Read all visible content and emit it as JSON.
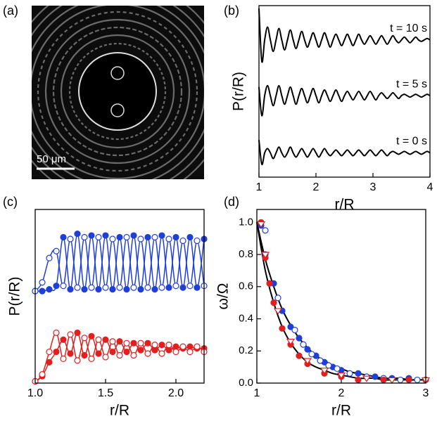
{
  "image_panel": {
    "label": "(a)",
    "scale_bar": "50 μm"
  },
  "chart_data": [
    {
      "type": "line",
      "label": "(b)",
      "xlabel": "r/R",
      "ylabel": "P(r/R)",
      "xlim": [
        1,
        4
      ],
      "xticks": [
        1,
        2,
        3,
        4
      ],
      "ylim": [
        0,
        12
      ],
      "x": [
        1.0,
        1.05,
        1.1,
        1.15,
        1.2,
        1.25,
        1.3,
        1.35,
        1.4,
        1.45,
        1.5,
        1.55,
        1.6,
        1.65,
        1.7,
        1.75,
        1.8,
        1.85,
        1.9,
        1.95,
        2.0,
        2.05,
        2.1,
        2.15,
        2.2,
        2.25,
        2.3,
        2.35,
        2.4,
        2.45,
        2.5,
        2.55,
        2.6,
        2.65,
        2.7,
        2.75,
        2.8,
        2.85,
        2.9,
        2.95,
        3.0,
        3.05,
        3.1,
        3.15,
        3.2,
        3.25,
        3.3,
        3.35,
        3.4,
        3.45,
        3.5,
        3.55,
        3.6,
        3.65,
        3.7,
        3.75,
        3.8,
        3.85,
        3.9,
        3.95,
        4.0
      ],
      "series": [
        {
          "name": "t = 10 s",
          "color": "#000000",
          "values": [
            11.8,
            8.1,
            9.6,
            10.5,
            9.6,
            8.8,
            9.6,
            10.4,
            9.6,
            8.9,
            9.6,
            10.3,
            9.6,
            9.0,
            9.6,
            10.2,
            9.6,
            9.1,
            9.6,
            10.1,
            9.6,
            9.1,
            9.6,
            10.1,
            9.6,
            9.1,
            9.6,
            10.0,
            9.6,
            9.2,
            9.6,
            10.0,
            9.6,
            9.2,
            9.6,
            10.0,
            9.6,
            9.3,
            9.6,
            9.9,
            9.6,
            9.3,
            9.6,
            9.9,
            9.6,
            9.3,
            9.6,
            9.9,
            9.6,
            9.4,
            9.6,
            9.8,
            9.6,
            9.4,
            9.6,
            9.8,
            9.6,
            9.5,
            9.6,
            9.7,
            9.6
          ]
        },
        {
          "name": "t = 5 s",
          "color": "#000000",
          "values": [
            6.3,
            4.3,
            5.7,
            6.4,
            5.7,
            5.0,
            5.7,
            6.4,
            5.7,
            5.1,
            5.7,
            6.3,
            5.7,
            5.1,
            5.7,
            6.2,
            5.7,
            5.2,
            5.7,
            6.2,
            5.7,
            5.2,
            5.7,
            6.1,
            5.7,
            5.3,
            5.7,
            6.1,
            5.7,
            5.3,
            5.7,
            6.0,
            5.7,
            5.4,
            5.7,
            6.0,
            5.7,
            5.4,
            5.7,
            6.0,
            5.7,
            5.4,
            5.7,
            5.9,
            5.7,
            5.5,
            5.7,
            5.9,
            5.7,
            5.5,
            5.7,
            5.8,
            5.7,
            5.6,
            5.7,
            5.8,
            5.7,
            5.6,
            5.7,
            5.8,
            5.7
          ]
        },
        {
          "name": "t = 0 s",
          "color": "#000000",
          "values": [
            2.6,
            0.9,
            1.7,
            2.0,
            1.7,
            1.3,
            1.7,
            2.1,
            1.7,
            1.4,
            1.7,
            2.1,
            1.7,
            1.4,
            1.7,
            2.0,
            1.7,
            1.4,
            1.7,
            2.0,
            1.7,
            1.4,
            1.7,
            2.0,
            1.7,
            1.5,
            1.7,
            1.9,
            1.7,
            1.5,
            1.7,
            1.9,
            1.7,
            1.5,
            1.7,
            1.9,
            1.7,
            1.5,
            1.7,
            1.9,
            1.7,
            1.5,
            1.7,
            1.9,
            1.7,
            1.5,
            1.7,
            1.8,
            1.7,
            1.6,
            1.7,
            1.8,
            1.7,
            1.6,
            1.7,
            1.8,
            1.7,
            1.6,
            1.7,
            1.8,
            1.7
          ]
        }
      ]
    },
    {
      "type": "line",
      "label": "(c)",
      "xlabel": "r/R",
      "ylabel": "P(r/R)",
      "xlim": [
        1.0,
        2.2
      ],
      "xticks": [
        {
          "value": 1,
          "label": "1.0"
        },
        1.5,
        {
          "value": 2,
          "label": "2.0"
        }
      ],
      "ylim": [
        0,
        10
      ],
      "x": [
        1.0,
        1.05,
        1.1,
        1.15,
        1.2,
        1.25,
        1.3,
        1.35,
        1.4,
        1.45,
        1.5,
        1.55,
        1.6,
        1.65,
        1.7,
        1.75,
        1.8,
        1.85,
        1.9,
        1.95,
        2.0,
        2.05,
        2.1,
        2.15,
        2.2
      ],
      "series": [
        {
          "color": "#1f3fd6",
          "marker": "circle-filled",
          "values": [
            5.3,
            5.3,
            5.4,
            5.6,
            8.4,
            5.4,
            8.6,
            5.4,
            8.5,
            5.4,
            8.5,
            5.4,
            8.4,
            5.4,
            8.5,
            5.4,
            8.4,
            5.4,
            8.5,
            5.5,
            8.4,
            5.5,
            8.4,
            5.5,
            8.3
          ]
        },
        {
          "color": "#1f3fd6",
          "marker": "circle-open",
          "values": [
            5.3,
            5.8,
            7.2,
            7.6,
            5.6,
            8.3,
            5.5,
            8.4,
            5.5,
            8.4,
            5.5,
            8.3,
            5.5,
            8.4,
            5.5,
            8.3,
            5.5,
            8.4,
            5.5,
            8.3,
            5.6,
            8.2,
            5.6,
            8.2,
            5.6
          ]
        },
        {
          "color": "#e02020",
          "marker": "circle-filled",
          "values": [
            0.1,
            0.4,
            1.2,
            1.8,
            2.5,
            1.7,
            2.9,
            1.6,
            2.7,
            1.7,
            2.5,
            1.8,
            2.4,
            1.8,
            2.3,
            1.9,
            2.3,
            1.9,
            2.2,
            1.9,
            2.1,
            2.0,
            2.1,
            2.0,
            2.0
          ]
        },
        {
          "color": "#e02020",
          "marker": "circle-open",
          "values": [
            0.1,
            0.5,
            1.8,
            2.9,
            1.4,
            2.8,
            1.3,
            2.6,
            1.4,
            2.5,
            1.5,
            2.4,
            1.6,
            2.3,
            1.6,
            2.3,
            1.7,
            2.2,
            1.7,
            2.2,
            1.8,
            2.1,
            1.8,
            2.1,
            1.8
          ]
        }
      ]
    },
    {
      "type": "scatter",
      "label": "(d)",
      "xlabel": "r/R",
      "ylabel": "ω/Ω",
      "xlim": [
        1,
        3
      ],
      "xticks": [
        1,
        2,
        3
      ],
      "ylim": [
        0,
        1.08
      ],
      "yticks": [
        {
          "value": 0,
          "label": "0.0"
        },
        0.2,
        0.4,
        0.6,
        0.8,
        {
          "value": 1,
          "label": "1.0"
        }
      ],
      "series": [
        {
          "color": "#000000",
          "line": true,
          "x": [
            1.0,
            1.1,
            1.2,
            1.3,
            1.4,
            1.5,
            1.6,
            1.7,
            1.8,
            1.9,
            2.0,
            2.1,
            2.2,
            2.3,
            2.4,
            2.5,
            2.6,
            2.7,
            2.8,
            2.9,
            3.0
          ],
          "values": [
            1.0,
            0.7,
            0.5,
            0.35,
            0.25,
            0.18,
            0.13,
            0.1,
            0.08,
            0.06,
            0.05,
            0.04,
            0.03,
            0.03,
            0.03,
            0.02,
            0.02,
            0.02,
            0.02,
            0.02,
            0.02
          ]
        },
        {
          "color": "#000000",
          "line": true,
          "x": [
            1.0,
            1.1,
            1.2,
            1.3,
            1.4,
            1.5,
            1.6,
            1.7,
            1.8,
            1.9,
            2.0,
            2.1,
            2.2,
            2.3,
            2.4,
            2.5,
            2.6,
            2.7,
            2.8,
            2.9,
            3.0
          ],
          "values": [
            1.0,
            0.77,
            0.6,
            0.46,
            0.36,
            0.28,
            0.22,
            0.17,
            0.14,
            0.11,
            0.09,
            0.07,
            0.06,
            0.05,
            0.04,
            0.03,
            0.03,
            0.03,
            0.02,
            0.02,
            0.02
          ]
        },
        {
          "color": "#1f3fd6",
          "marker": "circle-filled",
          "x": [
            1.05,
            1.1,
            1.2,
            1.3,
            1.4,
            1.5,
            1.6,
            1.7,
            1.8,
            1.9,
            2.0,
            2.2,
            2.4,
            2.6,
            2.8,
            3.0
          ],
          "values": [
            0.98,
            0.8,
            0.62,
            0.45,
            0.35,
            0.28,
            0.21,
            0.17,
            0.13,
            0.1,
            0.08,
            0.06,
            0.04,
            0.03,
            0.03,
            0.02
          ]
        },
        {
          "color": "#1f3fd6",
          "marker": "circle-open",
          "x": [
            1.1,
            1.25,
            1.45,
            1.55,
            1.65,
            1.75,
            1.85,
            1.95,
            2.1,
            2.3,
            2.5,
            2.7,
            2.9
          ],
          "values": [
            0.95,
            0.53,
            0.33,
            0.24,
            0.18,
            0.14,
            0.11,
            0.09,
            0.06,
            0.04,
            0.03,
            0.02,
            0.02
          ]
        },
        {
          "color": "#e02020",
          "marker": "circle-filled",
          "x": [
            1.05,
            1.1,
            1.15,
            1.2,
            1.3,
            1.4,
            1.5,
            1.6,
            1.8,
            2.0,
            2.2,
            2.5,
            2.8,
            3.0
          ],
          "values": [
            1.0,
            0.78,
            0.62,
            0.5,
            0.34,
            0.24,
            0.17,
            0.12,
            0.06,
            0.04,
            0.02,
            0.02,
            0.02,
            0.02
          ]
        },
        {
          "color": "#e02020",
          "marker": "triangle-open",
          "x": [
            1.05,
            1.1,
            1.25,
            1.4,
            1.6,
            1.8,
            2.0,
            2.3,
            2.6,
            3.0
          ],
          "values": [
            0.99,
            0.8,
            0.45,
            0.26,
            0.14,
            0.08,
            0.05,
            0.03,
            0.02,
            0.02
          ]
        }
      ]
    }
  ]
}
